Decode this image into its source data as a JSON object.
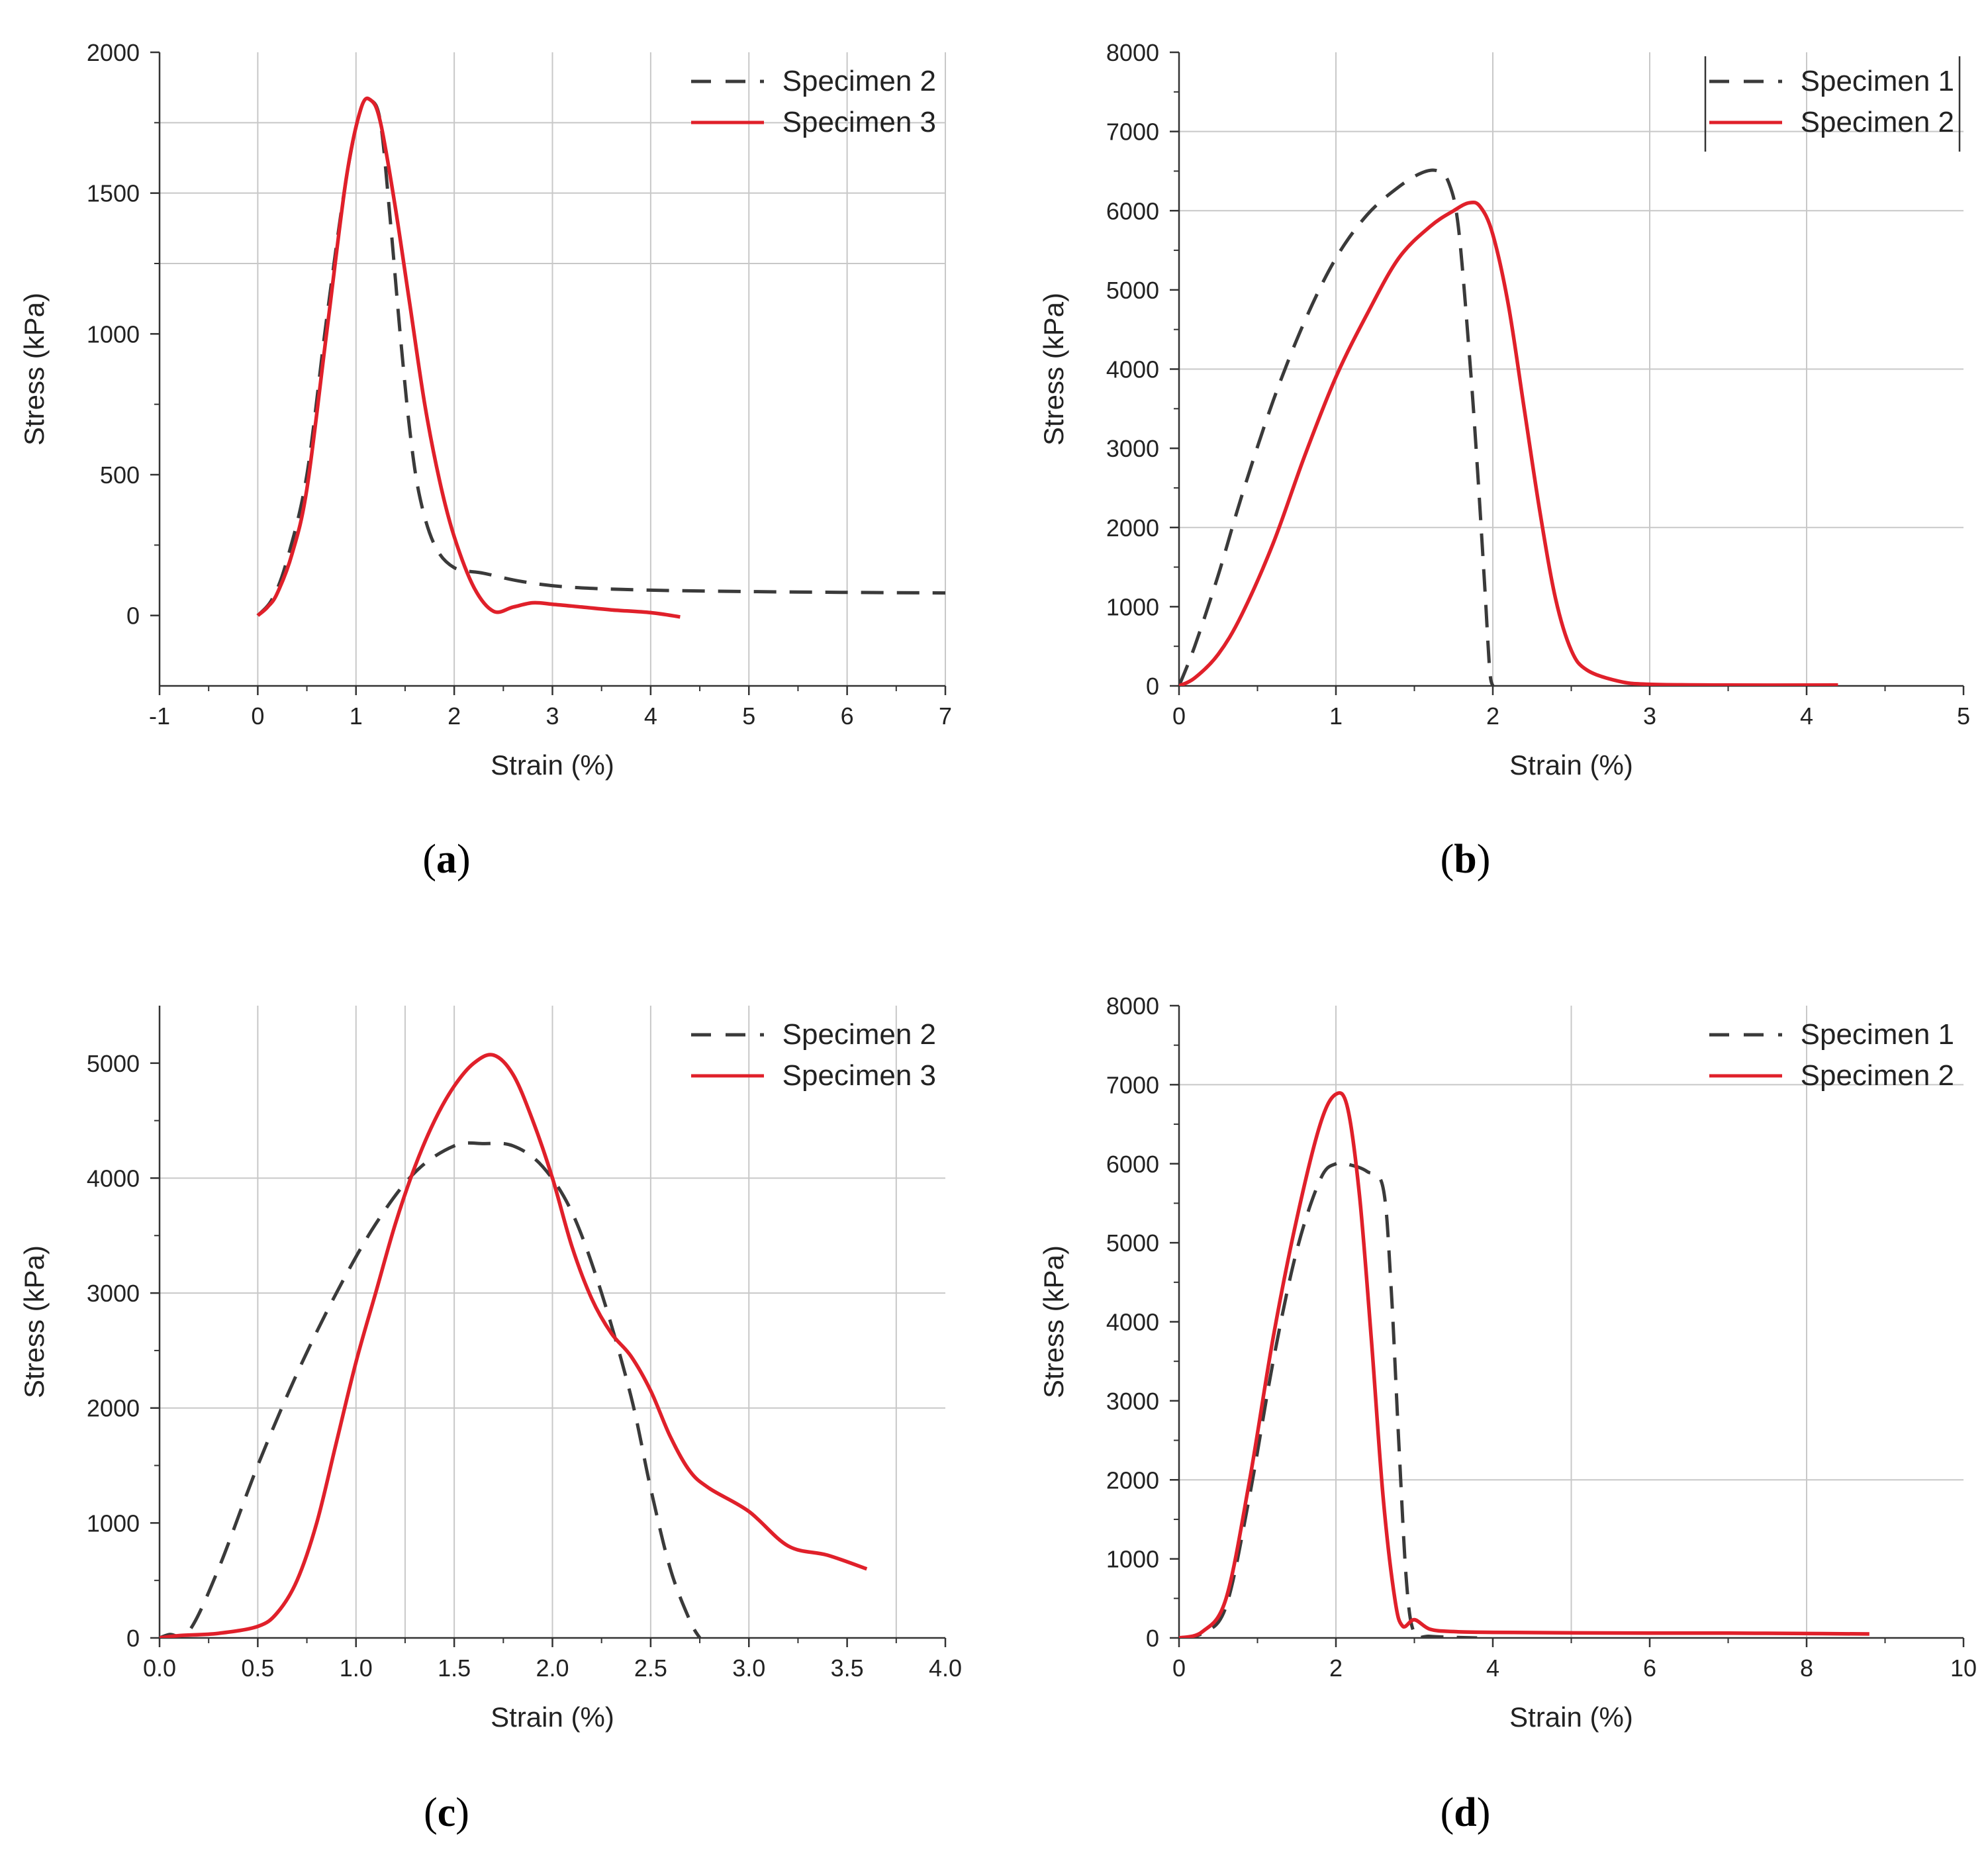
{
  "chart_data": [
    {
      "id": "a",
      "panel_label": "a",
      "type": "line",
      "xlabel": "Strain (%)",
      "ylabel": "Stress (kPa)",
      "xlim": [
        -1,
        7
      ],
      "ylim": [
        -250,
        2000
      ],
      "xticks": [
        -1,
        0,
        1,
        2,
        3,
        4,
        5,
        6,
        7
      ],
      "xtick_labels": [
        "-1",
        "0",
        "1",
        "2",
        "3",
        "4",
        "5",
        "6",
        "7"
      ],
      "yticks": [
        0,
        500,
        1000,
        1500,
        2000
      ],
      "ytick_labels": [
        "0",
        "500",
        "1000",
        "1500",
        "2000"
      ],
      "grid_x": [
        0,
        1,
        2,
        3,
        4,
        5,
        6,
        7
      ],
      "grid_y": [
        1250,
        1500,
        1750
      ],
      "legend": {
        "position": "top-right",
        "bordered": false
      },
      "series": [
        {
          "name": "Specimen 2",
          "style": "dashed",
          "color": "#3a3a3a",
          "x": [
            0,
            0.15,
            0.3,
            0.5,
            0.7,
            0.9,
            1.05,
            1.15,
            1.25,
            1.35,
            1.45,
            1.55,
            1.65,
            1.8,
            2.0,
            2.3,
            2.7,
            3.2,
            4.0,
            5.0,
            6.0,
            7.0
          ],
          "y": [
            0,
            60,
            200,
            500,
            1050,
            1550,
            1800,
            1830,
            1750,
            1400,
            1000,
            650,
            420,
            250,
            170,
            150,
            120,
            100,
            90,
            85,
            82,
            80
          ]
        },
        {
          "name": "Specimen 3",
          "style": "solid",
          "color": "#e0202a",
          "x": [
            0,
            0.1,
            0.2,
            0.35,
            0.5,
            0.7,
            0.9,
            1.05,
            1.15,
            1.25,
            1.4,
            1.55,
            1.7,
            1.85,
            2.0,
            2.2,
            2.4,
            2.6,
            2.8,
            3.0,
            3.3,
            3.6,
            4.0,
            4.3
          ],
          "y": [
            0,
            30,
            80,
            220,
            450,
            1000,
            1550,
            1800,
            1830,
            1750,
            1450,
            1100,
            750,
            480,
            280,
            100,
            15,
            30,
            45,
            40,
            30,
            20,
            10,
            -5
          ]
        }
      ]
    },
    {
      "id": "b",
      "panel_label": "b",
      "type": "line",
      "xlabel": "Strain (%)",
      "ylabel": "Stress (kPa)",
      "xlim": [
        0,
        5
      ],
      "ylim": [
        0,
        8000
      ],
      "xticks": [
        0,
        1,
        2,
        3,
        4,
        5
      ],
      "xtick_labels": [
        "0",
        "1",
        "2",
        "3",
        "4",
        "5"
      ],
      "yticks": [
        0,
        1000,
        2000,
        3000,
        4000,
        5000,
        6000,
        7000,
        8000
      ],
      "ytick_labels": [
        "0",
        "1000",
        "2000",
        "3000",
        "4000",
        "5000",
        "6000",
        "7000",
        "8000"
      ],
      "grid_x": [
        1,
        2,
        3,
        4
      ],
      "grid_y": [
        2000,
        4000,
        6000,
        7000
      ],
      "legend": {
        "position": "top-right",
        "bordered": true
      },
      "series": [
        {
          "name": "Specimen 1",
          "style": "dashed",
          "color": "#3a3a3a",
          "x": [
            0,
            0.1,
            0.25,
            0.4,
            0.6,
            0.8,
            1.0,
            1.2,
            1.4,
            1.55,
            1.65,
            1.72,
            1.78,
            1.85,
            1.9,
            1.95,
            1.98,
            2.0
          ],
          "y": [
            0,
            500,
            1400,
            2400,
            3600,
            4600,
            5400,
            5950,
            6300,
            6480,
            6500,
            6350,
            5800,
            4200,
            2800,
            1200,
            200,
            0
          ]
        },
        {
          "name": "Specimen 2",
          "style": "solid",
          "color": "#e0202a",
          "x": [
            0,
            0.1,
            0.25,
            0.4,
            0.6,
            0.8,
            1.0,
            1.2,
            1.4,
            1.6,
            1.75,
            1.85,
            1.92,
            2.0,
            2.1,
            2.2,
            2.3,
            2.4,
            2.5,
            2.6,
            2.8,
            3.0,
            3.5,
            4.2
          ],
          "y": [
            0,
            100,
            400,
            900,
            1800,
            2900,
            3900,
            4700,
            5400,
            5800,
            6000,
            6100,
            6050,
            5700,
            4800,
            3500,
            2200,
            1100,
            450,
            200,
            60,
            20,
            10,
            10
          ]
        }
      ]
    },
    {
      "id": "c",
      "panel_label": "c",
      "type": "line",
      "xlabel": "Strain (%)",
      "ylabel": "Stress (kPa)",
      "xlim": [
        0,
        4
      ],
      "ylim": [
        0,
        5500
      ],
      "xticks": [
        0,
        0.5,
        1.0,
        1.5,
        2.0,
        2.5,
        3.0,
        3.5,
        4.0
      ],
      "xtick_labels": [
        "0.0",
        "0.5",
        "1.0",
        "1.5",
        "2.0",
        "2.5",
        "3.0",
        "3.5",
        "4.0"
      ],
      "yticks": [
        0,
        1000,
        2000,
        3000,
        4000,
        5000
      ],
      "ytick_labels": [
        "0",
        "1000",
        "2000",
        "3000",
        "4000",
        "5000"
      ],
      "grid_x": [
        0.5,
        1.0,
        1.25,
        1.5,
        2.0,
        2.5,
        3.0,
        3.75
      ],
      "grid_y": [
        2000,
        3000,
        4000
      ],
      "legend": {
        "position": "top-right",
        "bordered": false
      },
      "series": [
        {
          "name": "Specimen 2",
          "style": "dashed",
          "color": "#3a3a3a",
          "x": [
            0,
            0.05,
            0.15,
            0.3,
            0.5,
            0.7,
            0.9,
            1.1,
            1.3,
            1.5,
            1.65,
            1.8,
            1.95,
            2.1,
            2.25,
            2.4,
            2.5,
            2.6,
            2.7,
            2.75
          ],
          "y": [
            0,
            30,
            60,
            600,
            1500,
            2300,
            3000,
            3600,
            4050,
            4280,
            4300,
            4280,
            4100,
            3700,
            3000,
            2100,
            1300,
            600,
            150,
            0
          ]
        },
        {
          "name": "Specimen 3",
          "style": "solid",
          "color": "#e0202a",
          "x": [
            0,
            0.1,
            0.3,
            0.5,
            0.6,
            0.7,
            0.8,
            0.9,
            1.0,
            1.1,
            1.2,
            1.3,
            1.4,
            1.5,
            1.6,
            1.7,
            1.8,
            1.9,
            2.0,
            2.1,
            2.2,
            2.3,
            2.4,
            2.5,
            2.6,
            2.7,
            2.8,
            3.0,
            3.2,
            3.4,
            3.6
          ],
          "y": [
            0,
            20,
            40,
            100,
            220,
            500,
            1000,
            1700,
            2400,
            3000,
            3600,
            4100,
            4500,
            4800,
            5000,
            5070,
            4900,
            4500,
            4000,
            3400,
            2950,
            2650,
            2450,
            2150,
            1750,
            1450,
            1300,
            1100,
            800,
            720,
            600
          ]
        }
      ]
    },
    {
      "id": "d",
      "panel_label": "d",
      "type": "line",
      "xlabel": "Strain (%)",
      "ylabel": "Stress (kPa)",
      "xlim": [
        0,
        10
      ],
      "ylim": [
        0,
        8000
      ],
      "xticks": [
        0,
        2,
        4,
        6,
        8,
        10
      ],
      "xtick_labels": [
        "0",
        "2",
        "4",
        "6",
        "8",
        "10"
      ],
      "yticks": [
        0,
        1000,
        2000,
        3000,
        4000,
        5000,
        6000,
        7000,
        8000
      ],
      "ytick_labels": [
        "0",
        "1000",
        "2000",
        "3000",
        "4000",
        "5000",
        "6000",
        "7000",
        "8000"
      ],
      "grid_x": [
        2,
        5,
        8
      ],
      "grid_y": [
        2000,
        7000
      ],
      "legend": {
        "position": "top-right",
        "bordered": false
      },
      "series": [
        {
          "name": "Specimen 1",
          "style": "dashed",
          "color": "#3a3a3a",
          "x": [
            0,
            0.3,
            0.6,
            0.9,
            1.2,
            1.5,
            1.8,
            2.0,
            2.2,
            2.4,
            2.6,
            2.7,
            2.8,
            2.9,
            3.0,
            3.2,
            3.8
          ],
          "y": [
            0,
            60,
            400,
            1800,
            3500,
            4900,
            5800,
            6000,
            5980,
            5900,
            5700,
            4500,
            2500,
            700,
            60,
            20,
            0
          ]
        },
        {
          "name": "Specimen 2",
          "style": "solid",
          "color": "#e0202a",
          "x": [
            0,
            0.3,
            0.6,
            0.9,
            1.2,
            1.5,
            1.8,
            2.0,
            2.15,
            2.3,
            2.45,
            2.6,
            2.75,
            2.85,
            3.0,
            3.2,
            3.5,
            4.0,
            6.0,
            7.0,
            8.0,
            8.8
          ],
          "y": [
            0,
            80,
            500,
            2000,
            3800,
            5300,
            6500,
            6880,
            6700,
            5600,
            3800,
            1800,
            500,
            150,
            230,
            110,
            80,
            70,
            60,
            60,
            55,
            50
          ]
        }
      ]
    }
  ]
}
